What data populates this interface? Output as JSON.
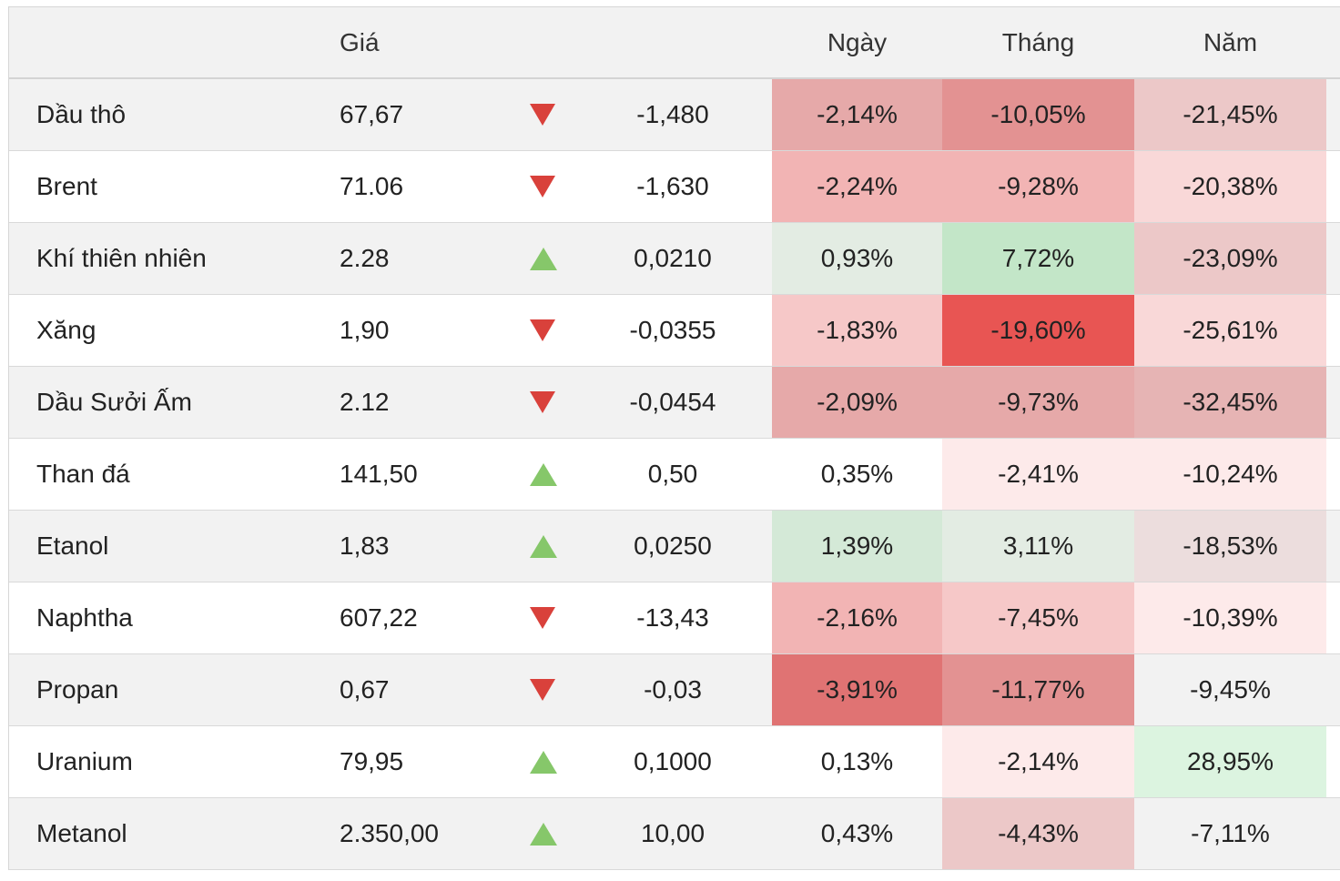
{
  "header": {
    "name": "",
    "price": "Giá",
    "change": "",
    "day": "Ngày",
    "month": "Tháng",
    "year": "Năm"
  },
  "rows": [
    {
      "name": "Dầu thô",
      "price": "67,67",
      "direction": "down",
      "change": "-1,480",
      "day": "-2,14%",
      "month": "-10,05%",
      "year": "-21,45%",
      "day_bg": "#e6a9a9",
      "month_bg": "#e39292",
      "year_bg": "#ecc8c8"
    },
    {
      "name": "Brent",
      "price": "71.06",
      "direction": "down",
      "change": "-1,630",
      "day": "-2,24%",
      "month": "-9,28%",
      "year": "-20,38%",
      "day_bg": "#f2b4b4",
      "month_bg": "#f2b4b4",
      "year_bg": "#f9d8d8"
    },
    {
      "name": "Khí thiên nhiên",
      "price": "2.28",
      "direction": "up",
      "change": "0,0210",
      "day": "0,93%",
      "month": "7,72%",
      "year": "-23,09%",
      "day_bg": "#e3ece3",
      "month_bg": "#c3e6c8",
      "year_bg": "#ecc8c8"
    },
    {
      "name": "Xăng",
      "price": "1,90",
      "direction": "down",
      "change": "-0,0355",
      "day": "-1,83%",
      "month": "-19,60%",
      "year": "-25,61%",
      "day_bg": "#f6c8c8",
      "month_bg": "#e85553",
      "year_bg": "#f9d8d8"
    },
    {
      "name": "Dầu Sưởi Ấm",
      "price": "2.12",
      "direction": "down",
      "change": "-0,0454",
      "day": "-2,09%",
      "month": "-9,73%",
      "year": "-32,45%",
      "day_bg": "#e6a9a9",
      "month_bg": "#e6a9a9",
      "year_bg": "#e6b4b4"
    },
    {
      "name": "Than đá",
      "price": "141,50",
      "direction": "up",
      "change": "0,50",
      "day": "0,35%",
      "month": "-2,41%",
      "year": "-10,24%",
      "day_bg": "#ffffff",
      "month_bg": "#fdeaea",
      "year_bg": "#fdeaea"
    },
    {
      "name": "Etanol",
      "price": "1,83",
      "direction": "up",
      "change": "0,0250",
      "day": "1,39%",
      "month": "3,11%",
      "year": "-18,53%",
      "day_bg": "#d4e9d7",
      "month_bg": "#e3ece3",
      "year_bg": "#ecdddd"
    },
    {
      "name": "Naphtha",
      "price": "607,22",
      "direction": "down",
      "change": "-13,43",
      "day": "-2,16%",
      "month": "-7,45%",
      "year": "-10,39%",
      "day_bg": "#f2b4b4",
      "month_bg": "#f6c8c8",
      "year_bg": "#fdeaea"
    },
    {
      "name": "Propan",
      "price": "0,67",
      "direction": "down",
      "change": "-0,03",
      "day": "-3,91%",
      "month": "-11,77%",
      "year": "-9,45%",
      "day_bg": "#e07373",
      "month_bg": "#e39292",
      "year_bg": "#f2f2f2"
    },
    {
      "name": "Uranium",
      "price": "79,95",
      "direction": "up",
      "change": "0,1000",
      "day": "0,13%",
      "month": "-2,14%",
      "year": "28,95%",
      "day_bg": "#ffffff",
      "month_bg": "#fdeaea",
      "year_bg": "#dcf4e0"
    },
    {
      "name": "Metanol",
      "price": "2.350,00",
      "direction": "up",
      "change": "10,00",
      "day": "0,43%",
      "month": "-4,43%",
      "year": "-7,11%",
      "day_bg": "#f2f2f2",
      "month_bg": "#ecc8c8",
      "year_bg": "#f2f2f2"
    }
  ]
}
